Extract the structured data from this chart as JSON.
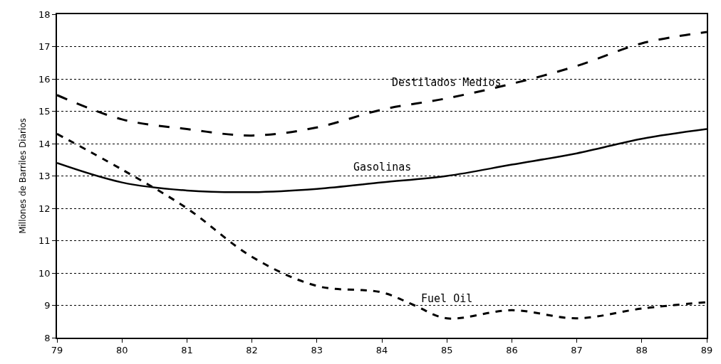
{
  "chart_data": {
    "type": "line",
    "ylabel": "Millones de Barriles Diarios",
    "x": [
      79,
      80,
      81,
      82,
      83,
      84,
      85,
      86,
      87,
      88,
      89
    ],
    "xlim": [
      79,
      89
    ],
    "xticks": [
      79,
      80,
      81,
      82,
      83,
      84,
      85,
      86,
      87,
      88,
      89
    ],
    "ylim": [
      8,
      18
    ],
    "yticks": [
      8,
      9,
      10,
      11,
      12,
      13,
      14,
      15,
      16,
      17,
      18
    ],
    "grid": "y",
    "legend": false,
    "marker": "none",
    "series": [
      {
        "name": "Destilados Medios",
        "color": "#000000",
        "line_style": "dashed",
        "values": [
          15.5,
          14.75,
          14.45,
          14.25,
          14.5,
          15.05,
          15.4,
          15.85,
          16.4,
          17.1,
          17.45
        ]
      },
      {
        "name": "Gasolinas",
        "color": "#000000",
        "line_style": "solid",
        "values": [
          13.4,
          12.8,
          12.55,
          12.5,
          12.6,
          12.8,
          13.0,
          13.35,
          13.7,
          14.15,
          14.45
        ]
      },
      {
        "name": "Fuel Oil",
        "color": "#000000",
        "line_style": "dashed",
        "x": [
          79,
          80,
          81,
          82,
          83,
          84,
          84.5,
          85,
          86,
          87,
          88,
          89
        ],
        "values": [
          14.3,
          13.2,
          12.0,
          10.5,
          9.6,
          9.4,
          9.0,
          8.6,
          8.85,
          8.6,
          8.9,
          9.1
        ]
      }
    ]
  }
}
